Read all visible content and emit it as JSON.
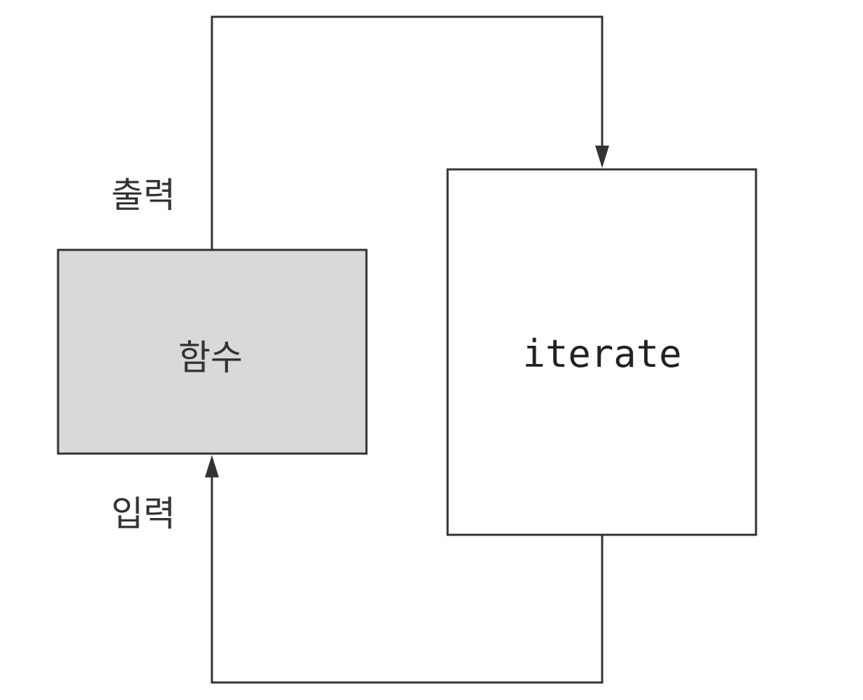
{
  "diagram": {
    "function_box": {
      "label": "함수"
    },
    "iterate_box": {
      "label": "iterate"
    },
    "output_label": "출력",
    "input_label": "입력"
  },
  "colors": {
    "stroke": "#333333",
    "function_fill": "#d9d9d9",
    "iterate_fill": "#ffffff"
  }
}
